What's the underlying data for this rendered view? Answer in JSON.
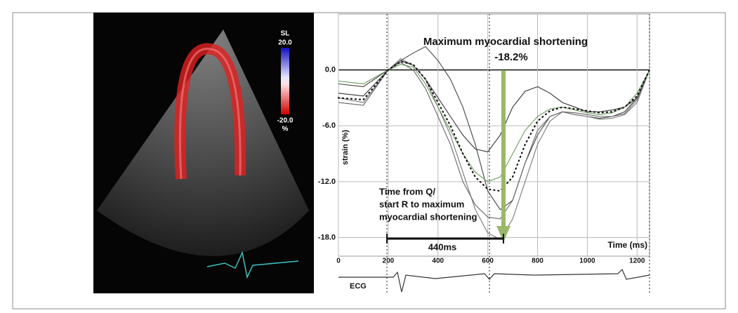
{
  "chart_data": {
    "type": "line",
    "title": "Maximum myocardial shortening",
    "peak_label": "-18.2%",
    "annotation_lines": [
      "Time from Q/",
      "start R to maximum",
      "myocardial shortening"
    ],
    "interval_label": "440ms",
    "x_label": "Time (ms)",
    "y_label": "strain (%)",
    "ecg_label": "ECG",
    "colorbar": {
      "title": "SL",
      "max_label": "20.0",
      "min_label": "-20.0",
      "unit": "%"
    },
    "x": [
      0,
      100,
      200,
      250,
      300,
      350,
      400,
      450,
      500,
      550,
      600,
      650,
      700,
      750,
      800,
      850,
      900,
      950,
      1000,
      1050,
      1100,
      1150,
      1200,
      1250
    ],
    "series": [
      {
        "color": "#333333",
        "style": "solid",
        "values": [
          -2.5,
          -2.8,
          0,
          1,
          0.5,
          -1,
          -3,
          -5,
          -7,
          -8.5,
          -8.8,
          -7,
          -4,
          -2.3,
          -1.8,
          -2.5,
          -3.5,
          -4,
          -4.5,
          -4.5,
          -4.3,
          -4,
          -3,
          0
        ]
      },
      {
        "color": "#444444",
        "style": "solid",
        "values": [
          -1.5,
          -1.8,
          0,
          1,
          1.8,
          2.5,
          1,
          -1,
          -4,
          -8,
          -13,
          -15,
          -14,
          -10,
          -7,
          -5,
          -4.5,
          -4.8,
          -5,
          -5.2,
          -5,
          -4.5,
          -3,
          0
        ]
      },
      {
        "color": "#777777",
        "style": "solid",
        "values": [
          -3,
          -3.5,
          0,
          1.2,
          0.5,
          -1,
          -4,
          -7,
          -11,
          -15,
          -17.5,
          -18.2,
          -16,
          -12,
          -8,
          -5.5,
          -4.5,
          -4.8,
          -5,
          -5.3,
          -5.2,
          -4.8,
          -3.5,
          0
        ]
      },
      {
        "color": "#666666",
        "style": "solid",
        "values": [
          -3.5,
          -3.8,
          0,
          0.8,
          0,
          -2,
          -5,
          -8,
          -12,
          -14.5,
          -15.8,
          -16,
          -14,
          -10,
          -6.5,
          -5,
          -4.5,
          -4.6,
          -4.8,
          -5,
          -5,
          -4.7,
          -3.2,
          0
        ]
      },
      {
        "color": "#6a9a5a",
        "style": "solid",
        "values": [
          -1.2,
          -1.5,
          0,
          0.6,
          0.3,
          -1.5,
          -4,
          -6.5,
          -9,
          -11,
          -12,
          -11.5,
          -9,
          -6.5,
          -5,
          -4.2,
          -4,
          -4.3,
          -4.6,
          -4.8,
          -4.6,
          -4,
          -2.5,
          0
        ]
      },
      {
        "color": "#111111",
        "style": "dotted",
        "values": [
          -3,
          -3.2,
          0,
          0.9,
          0.6,
          -1,
          -3.5,
          -6,
          -9,
          -11.5,
          -12.8,
          -13,
          -11.5,
          -8,
          -5.5,
          -4.4,
          -4,
          -4.2,
          -4.4,
          -4.6,
          -4.5,
          -4,
          -2.8,
          0
        ]
      }
    ],
    "xlim": [
      0,
      1250
    ],
    "ylim": [
      -20,
      6
    ],
    "xticks": [
      0,
      200,
      400,
      600,
      800,
      1000,
      1200
    ],
    "yticks": [
      {
        "value": 0,
        "label": "0.0"
      },
      {
        "value": -6,
        "label": "-6.0"
      },
      {
        "value": -12,
        "label": "-12.0"
      },
      {
        "value": -18,
        "label": "-18.0"
      }
    ],
    "grid": true
  }
}
